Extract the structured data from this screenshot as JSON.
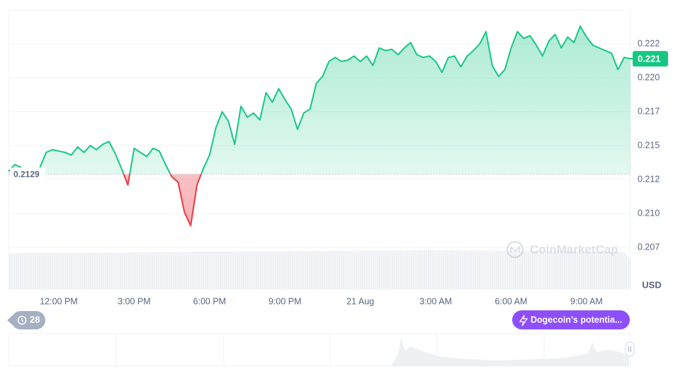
{
  "chart_data": {
    "type": "line",
    "categories": [
      null,
      null,
      null,
      null,
      null,
      null,
      null,
      null,
      "12:00 PM",
      null,
      null,
      null,
      null,
      null,
      null,
      null,
      null,
      null,
      null,
      null,
      "3:00 PM",
      null,
      null,
      null,
      null,
      null,
      null,
      null,
      null,
      null,
      null,
      null,
      "6:00 PM",
      null,
      null,
      null,
      null,
      null,
      null,
      null,
      null,
      null,
      null,
      null,
      "9:00 PM",
      null,
      null,
      null,
      null,
      null,
      null,
      null,
      null,
      null,
      null,
      null,
      "21 Aug",
      null,
      null,
      null,
      null,
      null,
      null,
      null,
      null,
      null,
      null,
      null,
      "3:00 AM",
      null,
      null,
      null,
      null,
      null,
      null,
      null,
      null,
      null,
      null,
      null,
      "6:00 AM",
      null,
      null,
      null,
      null,
      null,
      null,
      null,
      null,
      null,
      null,
      null,
      "9:00 AM",
      null,
      null,
      null,
      null,
      null,
      null,
      null
    ],
    "values": [
      0.2131,
      0.2136,
      0.2134,
      null,
      null,
      0.2134,
      0.2145,
      0.2147,
      0.2146,
      0.2145,
      0.2143,
      0.2149,
      0.2145,
      0.215,
      0.2147,
      0.2151,
      0.2153,
      0.2144,
      0.2133,
      0.2121,
      0.2148,
      0.2145,
      0.2142,
      0.2148,
      0.2146,
      0.2136,
      0.2127,
      0.2123,
      0.2101,
      0.2091,
      0.2121,
      0.2133,
      0.2143,
      0.2163,
      0.2175,
      0.2168,
      0.2151,
      0.2179,
      0.2171,
      0.2174,
      0.2169,
      0.2189,
      0.2182,
      0.2192,
      0.2184,
      0.2177,
      0.2162,
      0.2174,
      0.2177,
      0.2196,
      0.2201,
      0.2212,
      0.2215,
      0.2212,
      0.2213,
      0.2216,
      0.2212,
      0.2216,
      0.2209,
      0.2222,
      0.222,
      0.2221,
      0.2217,
      0.2222,
      0.2226,
      0.2217,
      0.2215,
      0.2216,
      0.2212,
      0.2204,
      0.2215,
      0.2216,
      0.2208,
      0.2216,
      0.222,
      0.2225,
      0.2234,
      0.2209,
      0.2201,
      0.2206,
      0.2222,
      0.2234,
      0.2229,
      0.2231,
      0.2224,
      0.2216,
      0.2227,
      0.2232,
      0.2222,
      0.223,
      0.2226,
      0.2238,
      0.223,
      0.2224,
      0.2222,
      0.222,
      0.2218,
      0.2206,
      0.2215,
      0.2214
    ],
    "ylim": [
      0.205,
      0.225
    ],
    "yticks": [
      {
        "value": 0.2075,
        "label": "0.207"
      },
      {
        "value": 0.21,
        "label": "0.210"
      },
      {
        "value": 0.2125,
        "label": "0.212"
      },
      0.215,
      {
        "value": 0.2175,
        "label": "0.217"
      },
      {
        "value": 0.22,
        "label": "0.220"
      },
      {
        "value": 0.2225,
        "label": "0.222"
      }
    ],
    "grid": true,
    "baseline": 0.2129,
    "current_price_label": "0.221",
    "y_unit": "USD",
    "up_color": "#16c784",
    "down_color": "#ea3943",
    "watermark": "CoinMarketCap"
  },
  "controls": {
    "history_badge": "28",
    "news_button": "Dogecoin's potentia..."
  }
}
